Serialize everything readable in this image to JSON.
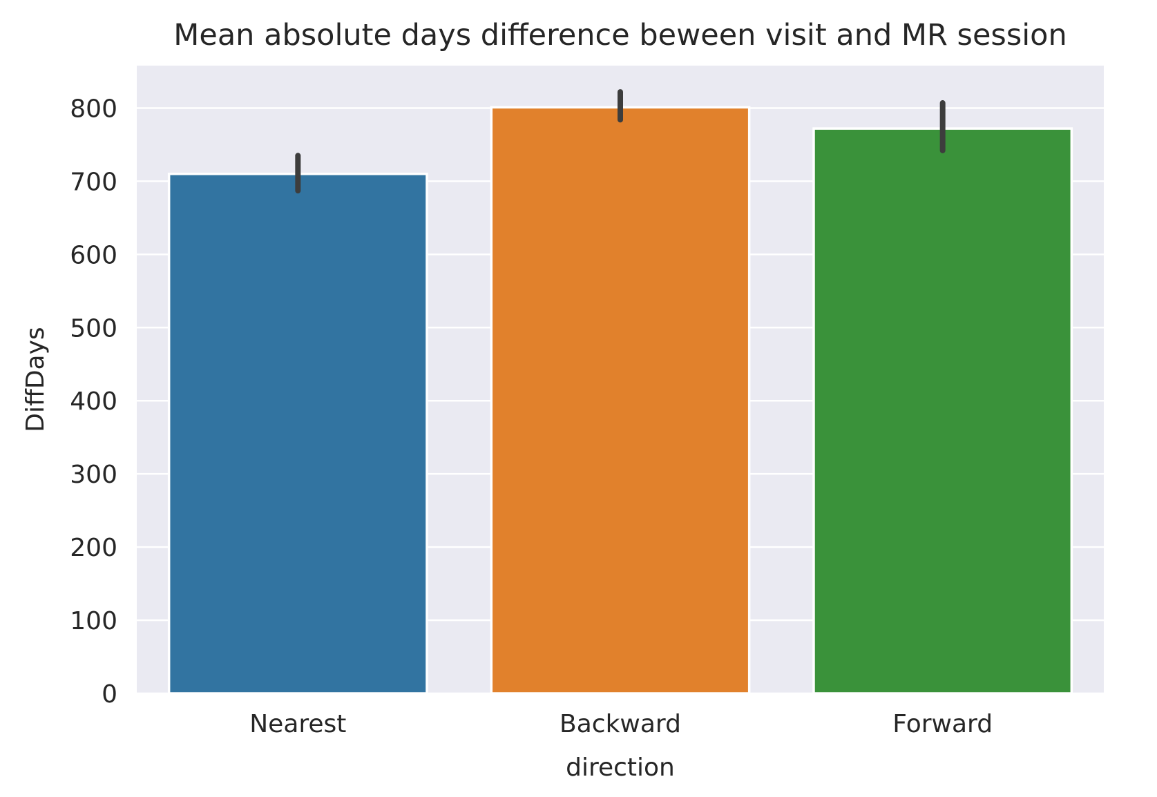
{
  "chart_data": {
    "type": "bar",
    "title": "Mean absolute days difference beween visit and MR session",
    "xlabel": "direction",
    "ylabel": "DiffDays",
    "categories": [
      "Nearest",
      "Backward",
      "Forward"
    ],
    "values": [
      710,
      801,
      772
    ],
    "error_bars": [
      {
        "low": 687,
        "high": 735
      },
      {
        "low": 784,
        "high": 822
      },
      {
        "low": 742,
        "high": 807
      }
    ],
    "ylim": [
      0,
      858
    ],
    "yticks": [
      0,
      100,
      200,
      300,
      400,
      500,
      600,
      700,
      800
    ],
    "grid": true,
    "colors": [
      "#3274a1",
      "#e1812c",
      "#3a923a"
    ],
    "background_color": "#eaeaf2",
    "errorbar_color": "#3d3d3d"
  }
}
